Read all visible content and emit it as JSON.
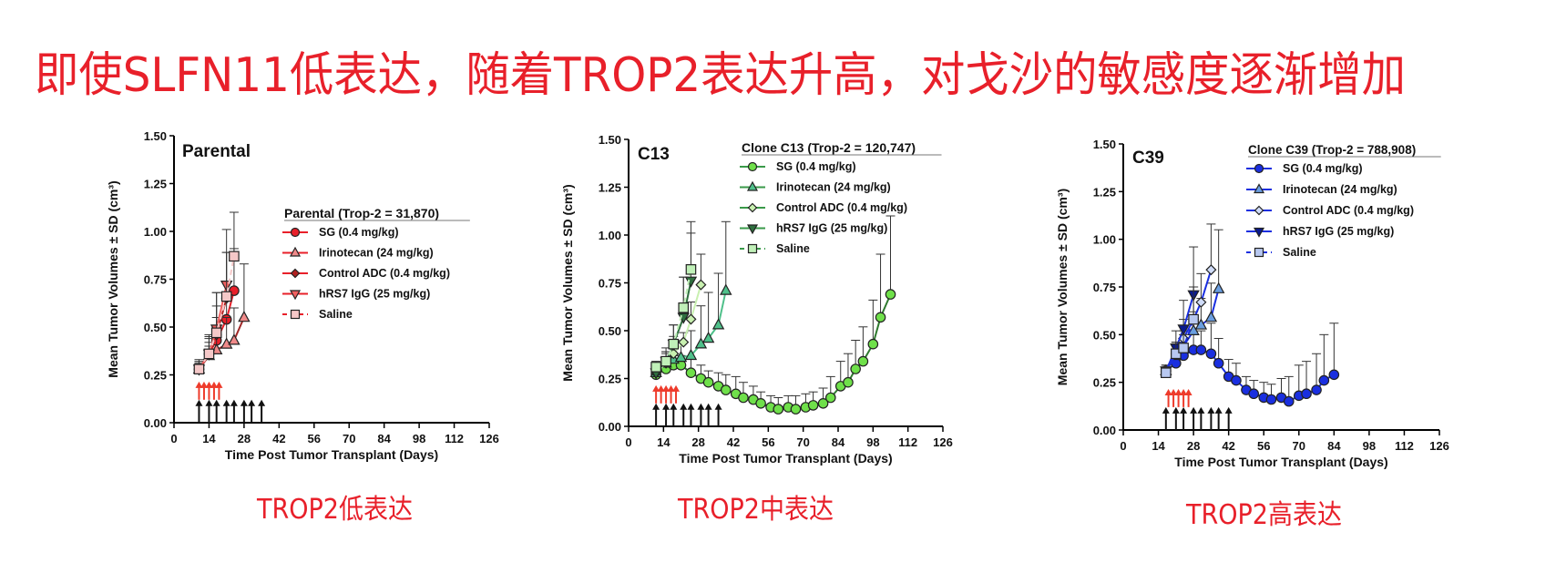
{
  "headline": "即使SLFN11低表达，随着TROP2表达升高，对戈沙的敏感度逐渐增加",
  "captions": [
    "TROP2低表达",
    "TROP2中表达",
    "TROP2高表达"
  ],
  "chart_data": [
    {
      "type": "line",
      "panel_label": "Parental",
      "legend_title": "Parental (Trop-2 = 31,870)",
      "xlabel": "Time Post Tumor Transplant (Days)",
      "ylabel": "Mean Tumor Volumes ± SD (cm³)",
      "xlim": [
        0,
        126
      ],
      "ylim": [
        0,
        1.5
      ],
      "xticks": [
        0,
        14,
        28,
        42,
        56,
        70,
        84,
        98,
        112,
        126
      ],
      "yticks": [
        "0.00",
        "0.25",
        "0.50",
        "0.75",
        "1.00",
        "1.25",
        "1.50"
      ],
      "colors": {
        "SG": "#e8202a",
        "Irinotecan": "#f08a8a",
        "Control ADC": "#b02020",
        "hRS7 IgG": "#f06060",
        "Saline": "#f5c8c8"
      },
      "series": [
        {
          "name": "SG (0.4 mg/kg)",
          "x": [
            10,
            14,
            17,
            21,
            24
          ],
          "y": [
            0.28,
            0.36,
            0.43,
            0.54,
            0.69
          ],
          "sd": [
            0.03,
            0.06,
            0.12,
            0.2,
            0.22
          ]
        },
        {
          "name": "Irinotecan (24 mg/kg)",
          "x": [
            10,
            14,
            17,
            21,
            24,
            28
          ],
          "y": [
            0.28,
            0.35,
            0.38,
            0.41,
            0.43,
            0.55
          ],
          "sd": [
            0.03,
            0.05,
            0.1,
            0.14,
            0.17,
            0.28
          ]
        },
        {
          "name": "Control ADC (0.4 mg/kg)",
          "x": [
            10,
            14,
            17,
            21
          ],
          "y": [
            0.28,
            0.36,
            0.46,
            0.65
          ],
          "sd": [
            0.04,
            0.08,
            0.15,
            0.24
          ]
        },
        {
          "name": "hRS7 IgG (25 mg/kg)",
          "x": [
            10,
            14,
            17,
            21
          ],
          "y": [
            0.28,
            0.36,
            0.49,
            0.72
          ],
          "sd": [
            0.04,
            0.09,
            0.19,
            0.29
          ]
        },
        {
          "name": "Saline",
          "x": [
            10,
            14,
            17,
            21,
            24
          ],
          "y": [
            0.28,
            0.36,
            0.47,
            0.66,
            0.87
          ],
          "sd": [
            0.05,
            0.1,
            0.21,
            0.23,
            0.23
          ]
        }
      ],
      "treatment_arrows_red_days": [
        10,
        12,
        14,
        16,
        18
      ],
      "treatment_arrows_black_days": [
        10,
        14,
        17,
        21,
        24,
        28,
        31,
        35
      ]
    },
    {
      "type": "line",
      "panel_label": "C13",
      "legend_title": "Clone C13 (Trop-2 = 120,747)",
      "xlabel": "Time Post Tumor Transplant (Days)",
      "ylabel": "Mean Tumor Volumes ± SD (cm³)",
      "xlim": [
        0,
        126
      ],
      "ylim": [
        0,
        1.5
      ],
      "xticks": [
        0,
        14,
        28,
        42,
        56,
        70,
        84,
        98,
        112,
        126
      ],
      "yticks": [
        "0.00",
        "0.25",
        "0.50",
        "0.75",
        "1.00",
        "1.25",
        "1.50"
      ],
      "colors": {
        "SG": "#6fe04a",
        "Irinotecan": "#4fc08a",
        "Control ADC": "#c8f0b0",
        "hRS7 IgG": "#2f6f3f",
        "Saline": "#c0f0b8"
      },
      "series": [
        {
          "name": "SG (0.4 mg/kg)",
          "x": [
            11,
            15,
            18,
            21,
            25,
            29,
            32,
            36,
            39,
            43,
            46,
            50,
            53,
            57,
            60,
            64,
            67,
            71,
            74,
            78,
            81,
            85,
            88,
            91,
            94,
            98,
            101,
            105
          ],
          "y": [
            0.27,
            0.3,
            0.32,
            0.32,
            0.28,
            0.25,
            0.23,
            0.21,
            0.19,
            0.17,
            0.15,
            0.14,
            0.12,
            0.1,
            0.09,
            0.1,
            0.09,
            0.1,
            0.11,
            0.12,
            0.15,
            0.21,
            0.23,
            0.3,
            0.34,
            0.43,
            0.57,
            0.69
          ],
          "sd": [
            0.02,
            0.04,
            0.05,
            0.05,
            0.07,
            0.07,
            0.06,
            0.07,
            0.08,
            0.09,
            0.08,
            0.07,
            0.06,
            0.06,
            0.06,
            0.06,
            0.07,
            0.07,
            0.07,
            0.08,
            0.11,
            0.13,
            0.15,
            0.15,
            0.18,
            0.23,
            0.33,
            0.41
          ]
        },
        {
          "name": "Irinotecan (24 mg/kg)",
          "x": [
            11,
            15,
            18,
            21,
            25,
            29,
            32,
            36,
            39
          ],
          "y": [
            0.28,
            0.33,
            0.35,
            0.36,
            0.37,
            0.43,
            0.46,
            0.53,
            0.71
          ],
          "sd": [
            0.03,
            0.05,
            0.06,
            0.08,
            0.13,
            0.2,
            0.24,
            0.27,
            0.36
          ]
        },
        {
          "name": "Control ADC (0.4 mg/kg)",
          "x": [
            11,
            15,
            18,
            22,
            25,
            29
          ],
          "y": [
            0.28,
            0.33,
            0.38,
            0.44,
            0.56,
            0.74
          ],
          "sd": [
            0.03,
            0.06,
            0.09,
            0.05,
            0.09,
            0.16
          ]
        },
        {
          "name": "hRS7 IgG (25 mg/kg)",
          "x": [
            11,
            15,
            18,
            22,
            25
          ],
          "y": [
            0.28,
            0.34,
            0.43,
            0.57,
            0.76
          ],
          "sd": [
            0.03,
            0.05,
            0.1,
            0.21,
            0.25
          ]
        },
        {
          "name": "Saline",
          "x": [
            11,
            15,
            18,
            22,
            25
          ],
          "y": [
            0.31,
            0.34,
            0.43,
            0.62,
            0.82
          ],
          "sd": [
            0.03,
            0.07,
            0.1,
            0.16,
            0.25
          ]
        }
      ],
      "treatment_arrows_red_days": [
        11,
        13,
        15,
        17,
        19
      ],
      "treatment_arrows_black_days": [
        11,
        15,
        18,
        22,
        25,
        29,
        32,
        36
      ]
    },
    {
      "type": "line",
      "panel_label": "C39",
      "legend_title": "Clone C39 (Trop-2 = 788,908)",
      "xlabel": "Time Post Tumor Transplant (Days)",
      "ylabel": "Mean Tumor Volumes ± SD (cm³)",
      "xlim": [
        0,
        126
      ],
      "ylim": [
        0,
        1.5
      ],
      "xticks": [
        0,
        14,
        28,
        42,
        56,
        70,
        84,
        98,
        112,
        126
      ],
      "yticks": [
        "0.00",
        "0.25",
        "0.50",
        "0.75",
        "1.00",
        "1.25",
        "1.50"
      ],
      "colors": {
        "SG": "#1a2fe0",
        "Irinotecan": "#6a9ee0",
        "Control ADC": "#d0dcf8",
        "hRS7 IgG": "#0a1a90",
        "Saline": "#b8c8f0"
      },
      "series": [
        {
          "name": "SG (0.4 mg/kg)",
          "x": [
            17,
            21,
            24,
            28,
            31,
            35,
            38,
            42,
            45,
            49,
            52,
            56,
            59,
            63,
            66,
            70,
            73,
            77,
            80,
            84
          ],
          "y": [
            0.31,
            0.35,
            0.39,
            0.42,
            0.42,
            0.4,
            0.35,
            0.28,
            0.26,
            0.21,
            0.19,
            0.17,
            0.16,
            0.17,
            0.15,
            0.18,
            0.19,
            0.21,
            0.26,
            0.29
          ],
          "sd": [
            0.02,
            0.04,
            0.06,
            0.08,
            0.1,
            0.16,
            0.13,
            0.09,
            0.09,
            0.07,
            0.07,
            0.08,
            0.08,
            0.1,
            0.13,
            0.16,
            0.17,
            0.19,
            0.24,
            0.27
          ]
        },
        {
          "name": "Irinotecan (24 mg/kg)",
          "x": [
            17,
            21,
            24,
            28,
            31,
            35,
            38
          ],
          "y": [
            0.31,
            0.39,
            0.44,
            0.52,
            0.55,
            0.59,
            0.74
          ],
          "sd": [
            0.03,
            0.06,
            0.08,
            0.1,
            0.14,
            0.18,
            0.31
          ]
        },
        {
          "name": "Control ADC (0.4 mg/kg)",
          "x": [
            17,
            21,
            24,
            28,
            31,
            35
          ],
          "y": [
            0.31,
            0.4,
            0.48,
            0.58,
            0.67,
            0.84
          ],
          "sd": [
            0.03,
            0.06,
            0.1,
            0.17,
            0.15,
            0.24
          ]
        },
        {
          "name": "hRS7 IgG (25 mg/kg)",
          "x": [
            17,
            21,
            24,
            28
          ],
          "y": [
            0.31,
            0.43,
            0.53,
            0.71
          ],
          "sd": [
            0.02,
            0.09,
            0.15,
            0.25
          ]
        },
        {
          "name": "Saline",
          "x": [
            17,
            21,
            24,
            28
          ],
          "y": [
            0.3,
            0.4,
            0.43,
            0.58
          ],
          "sd": [
            0.03,
            0.06,
            0.07,
            0.17
          ]
        }
      ],
      "treatment_arrows_red_days": [
        18,
        20,
        22,
        24,
        26
      ],
      "treatment_arrows_black_days": [
        17,
        21,
        24,
        28,
        31,
        35,
        38,
        42
      ]
    }
  ]
}
